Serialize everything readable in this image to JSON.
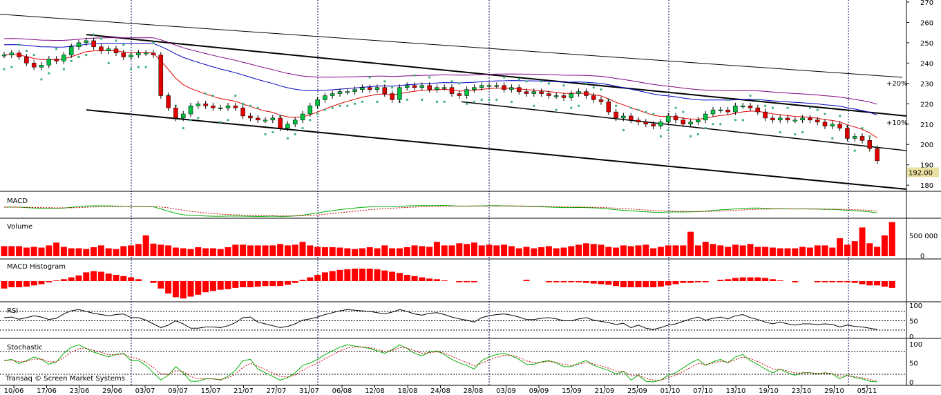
{
  "chart_data": {
    "type": "candlestick",
    "x_tick_labels": [
      "10/06",
      "17/06",
      "23/06",
      "29/06",
      "03/07",
      "09/07",
      "15/07",
      "21/07",
      "27/07",
      "31/07",
      "06/08",
      "12/08",
      "18/08",
      "24/08",
      "28/08",
      "03/09",
      "09/09",
      "15/09",
      "21/09",
      "25/09",
      "01/10",
      "07/10",
      "13/10",
      "19/10",
      "23/10",
      "29/10",
      "05/11"
    ],
    "price_panel": {
      "y_ticks": [
        270,
        260,
        250,
        240,
        230,
        220,
        210,
        200,
        190,
        180
      ],
      "ylim": [
        177,
        271
      ],
      "last_price_label": "192.00",
      "last_price": 192,
      "channel_labels": [
        "+20%",
        "+10%"
      ],
      "closes": [
        244,
        245,
        243,
        240,
        238,
        239,
        242,
        241,
        244,
        248,
        250,
        251,
        248,
        246,
        247,
        245,
        243,
        244,
        245,
        245,
        244,
        224,
        218,
        213,
        215,
        219,
        220,
        219,
        218,
        218,
        219,
        218,
        214,
        213,
        212,
        212,
        213,
        208,
        210,
        212,
        215,
        219,
        222,
        224,
        225,
        226,
        226,
        227,
        228,
        227,
        228,
        225,
        222,
        228,
        229,
        228,
        229,
        227,
        228,
        228,
        225,
        224,
        227,
        228,
        229,
        229,
        229,
        227,
        228,
        226,
        225,
        226,
        225,
        224,
        224,
        223,
        225,
        226,
        224,
        222,
        221,
        216,
        213,
        214,
        212,
        211,
        210,
        209,
        211,
        214,
        212,
        210,
        211,
        212,
        215,
        217,
        217,
        216,
        219,
        219,
        218,
        216,
        213,
        212,
        213,
        212,
        212,
        213,
        212,
        211,
        209,
        210,
        208,
        203,
        204,
        202,
        198,
        192
      ],
      "upper_channel": {
        "from": [
          125,
          254
        ],
        "to": [
          1312,
          214
        ]
      },
      "lower_channel": {
        "from": [
          125,
          217
        ],
        "to": [
          1312,
          178
        ]
      },
      "mid_channel": {
        "from": [
          668,
          221
        ],
        "to": [
          1312,
          197
        ]
      },
      "long_trend": {
        "from": [
          0,
          264
        ],
        "to": [
          1306,
          233
        ]
      }
    },
    "macd_panel": {
      "label": "MACD"
    },
    "volume_panel": {
      "label": "Volume",
      "y_tick_label": "500 000",
      "values": [
        0.28,
        0.28,
        0.28,
        0.24,
        0.26,
        0.24,
        0.3,
        0.38,
        0.26,
        0.22,
        0.22,
        0.2,
        0.25,
        0.3,
        0.22,
        0.2,
        0.28,
        0.3,
        0.34,
        0.58,
        0.35,
        0.32,
        0.3,
        0.24,
        0.22,
        0.2,
        0.25,
        0.22,
        0.22,
        0.2,
        0.25,
        0.32,
        0.32,
        0.3,
        0.3,
        0.3,
        0.3,
        0.34,
        0.3,
        0.32,
        0.4,
        0.3,
        0.26,
        0.25,
        0.25,
        0.24,
        0.22,
        0.2,
        0.22,
        0.25,
        0.22,
        0.3,
        0.22,
        0.22,
        0.25,
        0.3,
        0.28,
        0.26,
        0.4,
        0.3,
        0.3,
        0.36,
        0.34,
        0.38,
        0.3,
        0.32,
        0.3,
        0.32,
        0.28,
        0.22,
        0.26,
        0.22,
        0.25,
        0.28,
        0.22,
        0.24,
        0.28,
        0.32,
        0.36,
        0.34,
        0.32,
        0.26,
        0.24,
        0.3,
        0.28,
        0.3,
        0.32,
        0.22,
        0.26,
        0.3,
        0.3,
        0.3,
        0.68,
        0.3,
        0.4,
        0.34,
        0.3,
        0.26,
        0.32,
        0.3,
        0.34,
        0.26,
        0.26,
        0.24,
        0.22,
        0.22,
        0.22,
        0.26,
        0.24,
        0.3,
        0.3,
        0.24,
        0.5,
        0.32,
        0.42,
        0.8,
        0.36,
        0.26,
        0.58,
        0.95
      ]
    },
    "macd_histogram_panel": {
      "label": "MACD Histogram",
      "values": [
        -1.2,
        -1.0,
        -1.0,
        -0.9,
        -0.7,
        -0.5,
        -0.2,
        0.1,
        0.3,
        0.6,
        0.9,
        1.4,
        1.6,
        1.5,
        1.2,
        1.0,
        0.8,
        0.6,
        0.3,
        0.0,
        -0.3,
        -1.2,
        -2.0,
        -2.6,
        -2.8,
        -2.5,
        -2.2,
        -1.8,
        -1.6,
        -1.4,
        -1.3,
        -1.1,
        -1.0,
        -1.0,
        -0.9,
        -0.8,
        -0.8,
        -0.8,
        -0.6,
        -0.3,
        0.2,
        0.6,
        1.0,
        1.4,
        1.6,
        1.8,
        1.9,
        2.0,
        2.0,
        2.0,
        1.9,
        1.7,
        1.5,
        1.3,
        1.0,
        0.8,
        0.6,
        0.4,
        0.3,
        0.1,
        0.0,
        -0.2,
        -0.2,
        -0.2,
        0.0,
        0.0,
        0.0,
        0.0,
        0.0,
        0.0,
        0.2,
        0.0,
        0.0,
        -0.2,
        -0.2,
        -0.2,
        -0.2,
        -0.2,
        -0.3,
        -0.4,
        -0.5,
        -0.6,
        -0.8,
        -1.0,
        -1.0,
        -1.0,
        -1.0,
        -1.0,
        -0.9,
        -0.7,
        -0.5,
        -0.3,
        -0.3,
        -0.2,
        -0.2,
        0.0,
        0.2,
        0.3,
        0.5,
        0.6,
        0.6,
        0.6,
        0.5,
        0.3,
        0.1,
        0.0,
        -0.2,
        0.0,
        0.0,
        -0.2,
        -0.2,
        -0.2,
        -0.2,
        -0.2,
        -0.3,
        -0.5,
        -0.7,
        -0.7,
        -0.9,
        -1.1
      ]
    },
    "rsi_panel": {
      "label": "RSI",
      "y_ticks": [
        100,
        50,
        0
      ],
      "values": [
        60,
        62,
        55,
        60,
        66,
        62,
        54,
        58,
        72,
        82,
        86,
        80,
        74,
        70,
        66,
        70,
        72,
        60,
        60,
        52,
        40,
        28,
        36,
        50,
        40,
        26,
        26,
        30,
        30,
        28,
        34,
        44,
        60,
        62,
        46,
        40,
        34,
        28,
        32,
        40,
        52,
        56,
        62,
        70,
        76,
        82,
        86,
        84,
        82,
        80,
        76,
        72,
        78,
        86,
        80,
        72,
        68,
        74,
        76,
        70,
        62,
        56,
        52,
        46,
        60,
        66,
        70,
        72,
        68,
        62,
        54,
        54,
        58,
        60,
        56,
        50,
        50,
        56,
        60,
        52,
        48,
        44,
        38,
        42,
        28,
        36,
        26,
        22,
        28,
        36,
        40,
        48,
        56,
        62,
        52,
        58,
        62,
        56,
        66,
        70,
        60,
        54,
        46,
        40,
        46,
        40,
        36,
        40,
        40,
        38,
        40,
        38,
        30,
        36,
        32,
        30,
        26,
        22
      ]
    },
    "stochastic_panel": {
      "label": "Stochastic",
      "y_ticks": [
        100,
        50,
        0
      ]
    },
    "footer": {
      "credit": "Transaq © Screen Market Systems"
    },
    "colors": {
      "up_candle": "#00c040",
      "down_candle": "#e00000",
      "volume": "#ff0000",
      "ma_red": "#e00000",
      "ma_blue": "#0000c0",
      "ma_purple": "#800080",
      "sar": "#40b080",
      "osc_green": "#00b000",
      "osc_signal": "#c00000"
    }
  }
}
